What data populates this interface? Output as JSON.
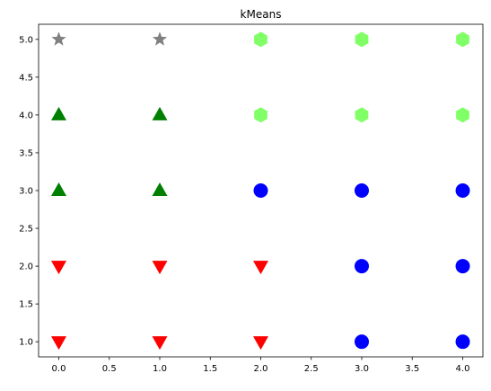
{
  "chart_data": {
    "type": "scatter",
    "title": "kMeans",
    "xlabel": "",
    "ylabel": "",
    "xlim": [
      -0.2,
      4.2
    ],
    "ylim": [
      0.8,
      5.2
    ],
    "xticks": [
      0.0,
      0.5,
      1.0,
      1.5,
      2.0,
      2.5,
      3.0,
      3.5,
      4.0
    ],
    "xtick_labels": [
      "0.0",
      "0.5",
      "1.0",
      "1.5",
      "2.0",
      "2.5",
      "3.0",
      "3.5",
      "4.0"
    ],
    "yticks": [
      1.0,
      1.5,
      2.0,
      2.5,
      3.0,
      3.5,
      4.0,
      4.5,
      5.0
    ],
    "ytick_labels": [
      "1.0",
      "1.5",
      "2.0",
      "2.5",
      "3.0",
      "3.5",
      "4.0",
      "4.5",
      "5.0"
    ],
    "grid": false,
    "series": [
      {
        "marker": "star",
        "color": "#808080",
        "points": [
          [
            0,
            5
          ],
          [
            1,
            5
          ]
        ]
      },
      {
        "marker": "hexagon",
        "color": "#80ff66",
        "points": [
          [
            2,
            5
          ],
          [
            3,
            5
          ],
          [
            4,
            5
          ],
          [
            2,
            4
          ],
          [
            3,
            4
          ],
          [
            4,
            4
          ]
        ]
      },
      {
        "marker": "triangle-up",
        "color": "#008000",
        "points": [
          [
            0,
            4
          ],
          [
            1,
            4
          ],
          [
            0,
            3
          ],
          [
            1,
            3
          ]
        ]
      },
      {
        "marker": "circle",
        "color": "#0000ff",
        "points": [
          [
            2,
            3
          ],
          [
            3,
            3
          ],
          [
            4,
            3
          ],
          [
            3,
            2
          ],
          [
            4,
            2
          ],
          [
            3,
            1
          ],
          [
            4,
            1
          ]
        ]
      },
      {
        "marker": "triangle-down",
        "color": "#ff0000",
        "points": [
          [
            0,
            2
          ],
          [
            1,
            2
          ],
          [
            2,
            2
          ],
          [
            0,
            1
          ],
          [
            1,
            1
          ],
          [
            2,
            1
          ]
        ]
      }
    ]
  }
}
